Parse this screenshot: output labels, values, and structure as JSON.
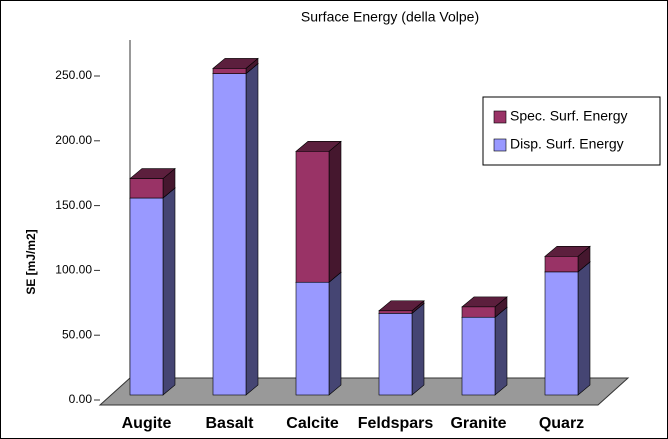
{
  "chart_data": {
    "type": "bar3d_stacked",
    "title": "Surface Energy (della Volpe)",
    "y_label": "SE  [mJ/m2]",
    "categories": [
      "Augite",
      "Basalt",
      "Calcite",
      "Feldspars",
      "Granite",
      "Quarz"
    ],
    "series": [
      {
        "name": "Disp. Surf. Energy",
        "color": "#9999ff",
        "values": [
          152,
          248,
          87,
          63,
          60,
          95
        ]
      },
      {
        "name": "Spec. Surf. Energy",
        "color": "#993366",
        "values": [
          15,
          4,
          101,
          2,
          8,
          12
        ]
      }
    ],
    "ylim": [
      0,
      250
    ],
    "yticks": [
      {
        "value": 0,
        "label": "0.00"
      },
      {
        "value": 50,
        "label": "50.00"
      },
      {
        "value": 100,
        "label": "100.00"
      },
      {
        "value": 150,
        "label": "150.00"
      },
      {
        "value": 200,
        "label": "200.00"
      },
      {
        "value": 250,
        "label": "250.00"
      }
    ],
    "legend": "upper right"
  }
}
